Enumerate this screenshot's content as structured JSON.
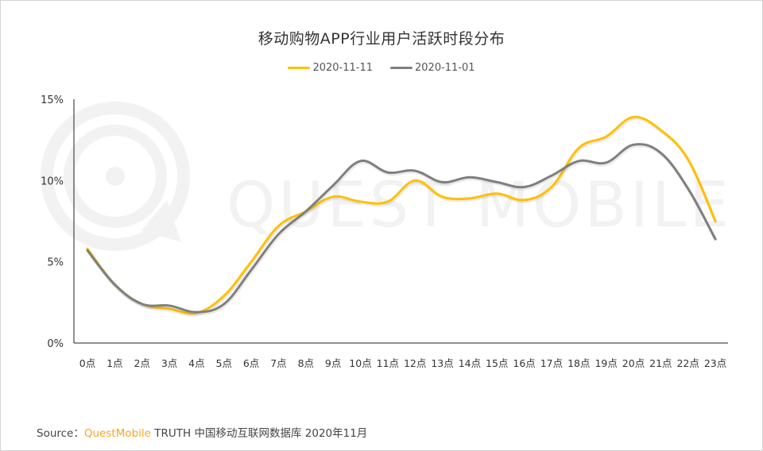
{
  "chart_data": {
    "type": "line",
    "title": "移动购物APP行业用户活跃时段分布",
    "xlabel": "",
    "ylabel": "",
    "categories": [
      "0点",
      "1点",
      "2点",
      "3点",
      "4点",
      "5点",
      "6点",
      "7点",
      "8点",
      "9点",
      "10点",
      "11点",
      "12点",
      "13点",
      "14点",
      "15点",
      "16点",
      "17点",
      "18点",
      "19点",
      "20点",
      "21点",
      "22点",
      "23点"
    ],
    "series": [
      {
        "name": "2020-11-11",
        "color": "#FFC000",
        "values": [
          5.8,
          3.6,
          2.4,
          2.1,
          1.85,
          2.9,
          5.0,
          7.2,
          8.1,
          9.0,
          8.7,
          8.7,
          10.0,
          9.0,
          8.9,
          9.2,
          8.8,
          9.6,
          12.0,
          12.7,
          13.9,
          13.1,
          11.3,
          7.5
        ]
      },
      {
        "name": "2020-11-01",
        "color": "#7F7F7F",
        "values": [
          5.7,
          3.6,
          2.4,
          2.3,
          1.9,
          2.4,
          4.5,
          6.7,
          8.1,
          9.7,
          11.2,
          10.5,
          10.6,
          9.9,
          10.2,
          9.9,
          9.6,
          10.3,
          11.2,
          11.1,
          12.2,
          11.7,
          9.5,
          6.4
        ]
      }
    ],
    "yticks": [
      "0%",
      "5%",
      "10%",
      "15%"
    ],
    "ylim": [
      0,
      15
    ],
    "grid": false,
    "legend_position": "top"
  },
  "header": {
    "title": "移动购物APP行业用户活跃时段分布"
  },
  "legend": [
    {
      "label": "2020-11-11",
      "color": "#FFC000"
    },
    {
      "label": "2020-11-01",
      "color": "#7F7F7F"
    }
  ],
  "watermark": {
    "text": "QUEST MOBILE",
    "icon": "questmobile-logo-icon"
  },
  "footer": {
    "prefix": "Source：",
    "brand": "QuestMobile",
    "suffix": " TRUTH 中国移动互联网数据库 2020年11月"
  }
}
